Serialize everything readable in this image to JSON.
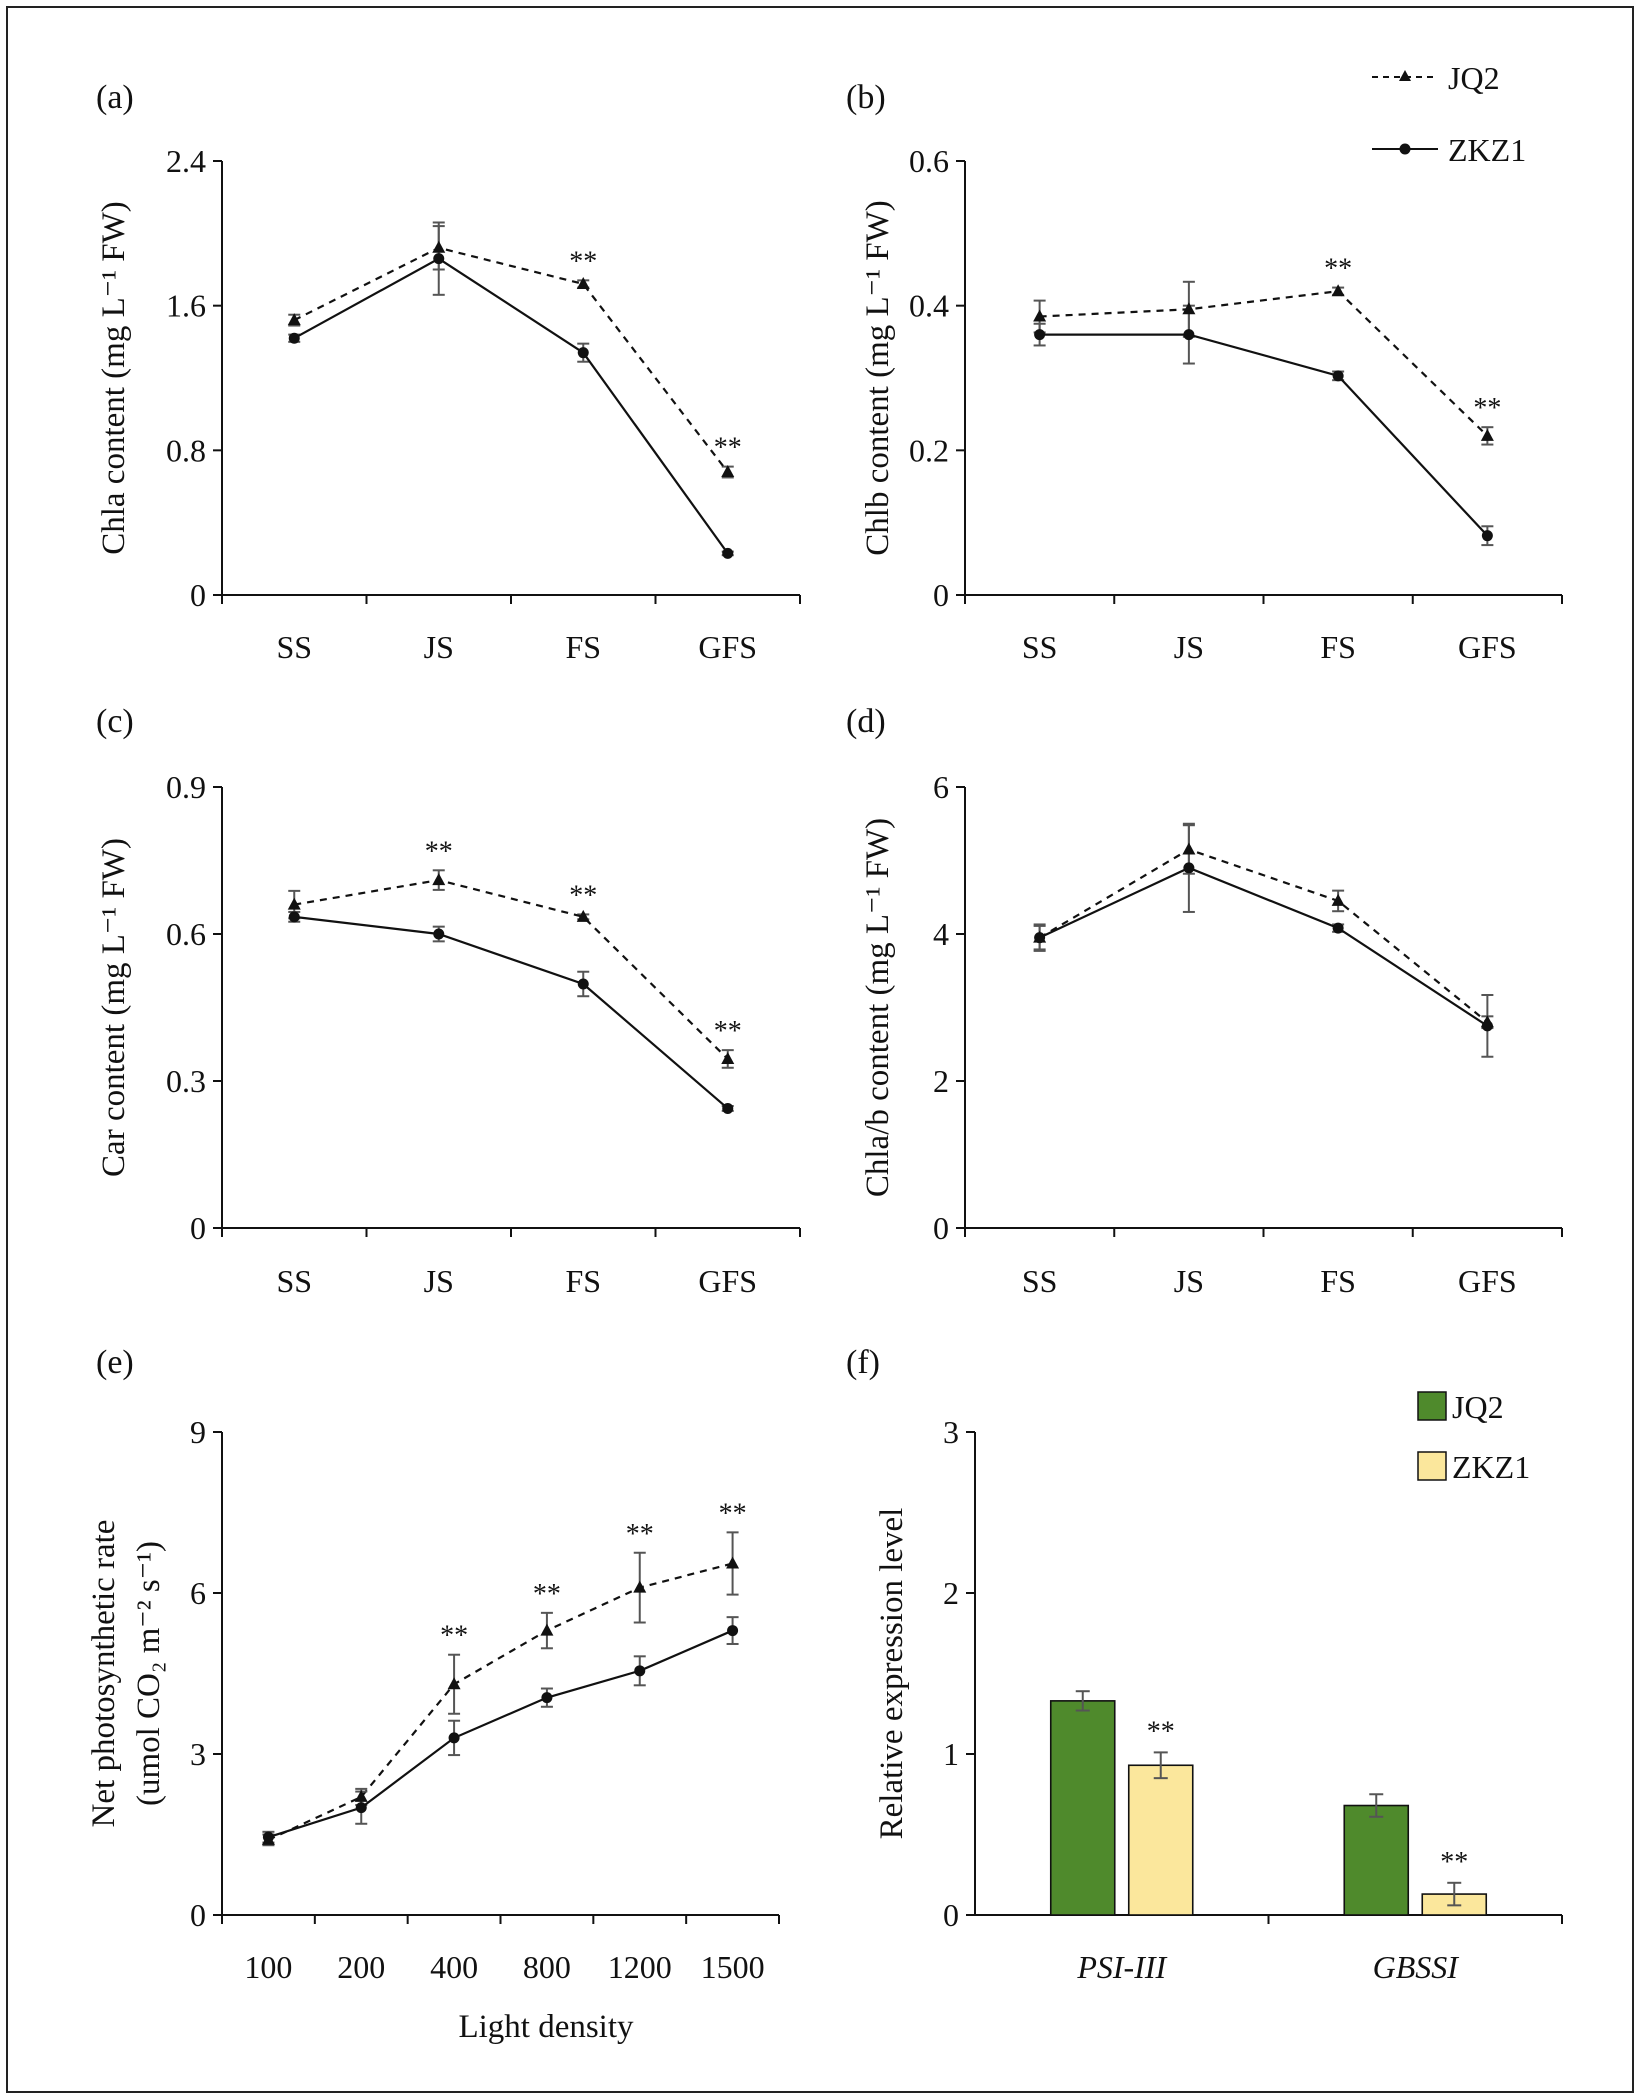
{
  "legend_lines": {
    "series": [
      "JQ2",
      "ZKZ1"
    ]
  },
  "legend_bars": {
    "series": [
      "JQ2",
      "ZKZ1"
    ],
    "colors": [
      "#4f8a2c",
      "#fbe79c"
    ]
  },
  "chart_data": [
    {
      "id": "a",
      "type": "line",
      "panel_label": "(a)",
      "ylabel": "Chla content (mg L⁻¹ FW)",
      "xlabel": "",
      "categories": [
        "SS",
        "JS",
        "FS",
        "GFS"
      ],
      "ylim": [
        0,
        2.4
      ],
      "yticks": [
        0,
        0.8,
        1.6,
        2.4
      ],
      "ytick_labels": [
        "0",
        "0.8",
        "1.6",
        "2.4"
      ],
      "series": [
        {
          "name": "JQ2",
          "values": [
            1.52,
            1.92,
            1.72,
            0.68
          ],
          "errors": [
            0.03,
            0.12,
            0.02,
            0.03
          ]
        },
        {
          "name": "ZKZ1",
          "values": [
            1.42,
            1.86,
            1.34,
            0.23
          ],
          "errors": [
            0.02,
            0.2,
            0.05,
            0.01
          ]
        }
      ],
      "annotations": [
        "",
        "",
        "**",
        "**"
      ]
    },
    {
      "id": "b",
      "type": "line",
      "panel_label": "(b)",
      "ylabel": "Chlb content (mg L⁻¹ FW)",
      "xlabel": "",
      "categories": [
        "SS",
        "JS",
        "FS",
        "GFS"
      ],
      "ylim": [
        0,
        0.6
      ],
      "yticks": [
        0,
        0.2,
        0.4,
        0.6
      ],
      "ytick_labels": [
        "0",
        "0.2",
        "0.4",
        "0.6"
      ],
      "series": [
        {
          "name": "JQ2",
          "values": [
            0.385,
            0.395,
            0.42,
            0.22
          ],
          "errors": [
            0.022,
            0.038,
            0.005,
            0.012
          ]
        },
        {
          "name": "ZKZ1",
          "values": [
            0.36,
            0.36,
            0.303,
            0.082
          ],
          "errors": [
            0.015,
            0.04,
            0.006,
            0.013
          ]
        }
      ],
      "annotations": [
        "",
        "",
        "**",
        "**"
      ]
    },
    {
      "id": "c",
      "type": "line",
      "panel_label": "(c)",
      "ylabel": "Car content (mg L⁻¹ FW)",
      "xlabel": "",
      "categories": [
        "SS",
        "JS",
        "FS",
        "GFS"
      ],
      "ylim": [
        0,
        0.9
      ],
      "yticks": [
        0,
        0.3,
        0.6,
        0.9
      ],
      "ytick_labels": [
        "0",
        "0.3",
        "0.6",
        "0.9"
      ],
      "series": [
        {
          "name": "JQ2",
          "values": [
            0.66,
            0.71,
            0.635,
            0.345
          ],
          "errors": [
            0.028,
            0.02,
            0.005,
            0.018
          ]
        },
        {
          "name": "ZKZ1",
          "values": [
            0.635,
            0.6,
            0.498,
            0.244
          ],
          "errors": [
            0.01,
            0.015,
            0.025,
            0.005
          ]
        }
      ],
      "annotations": [
        "",
        "**",
        "**",
        "**"
      ]
    },
    {
      "id": "d",
      "type": "line",
      "panel_label": "(d)",
      "ylabel": "Chla/b content (mg L⁻¹ FW)",
      "xlabel": "",
      "categories": [
        "SS",
        "JS",
        "FS",
        "GFS"
      ],
      "ylim": [
        0,
        6
      ],
      "yticks": [
        0,
        2,
        4,
        6
      ],
      "ytick_labels": [
        "0",
        "2",
        "4",
        "6"
      ],
      "series": [
        {
          "name": "JQ2",
          "values": [
            3.95,
            5.15,
            4.45,
            2.8
          ],
          "errors": [
            0.16,
            0.33,
            0.14,
            0.08
          ]
        },
        {
          "name": "ZKZ1",
          "values": [
            3.95,
            4.9,
            4.08,
            2.75
          ],
          "errors": [
            0.18,
            0.6,
            0.05,
            0.42
          ]
        }
      ],
      "annotations": [
        "",
        "",
        "",
        ""
      ]
    },
    {
      "id": "e",
      "type": "line",
      "panel_label": "(e)",
      "ylabel": "Net photosynthetic rate",
      "ylabel2": "(umol CO₂ m⁻² s⁻¹)",
      "xlabel": "Light density",
      "categories": [
        "100",
        "200",
        "400",
        "800",
        "1200",
        "1500"
      ],
      "ylim": [
        0,
        9
      ],
      "yticks": [
        0,
        3,
        6,
        9
      ],
      "ytick_labels": [
        "0",
        "3",
        "6",
        "9"
      ],
      "series": [
        {
          "name": "JQ2",
          "values": [
            1.4,
            2.2,
            4.3,
            5.3,
            6.1,
            6.55
          ],
          "errors": [
            0.1,
            0.15,
            0.55,
            0.33,
            0.65,
            0.58
          ]
        },
        {
          "name": "ZKZ1",
          "values": [
            1.45,
            2.0,
            3.3,
            4.05,
            4.55,
            5.3
          ],
          "errors": [
            0.1,
            0.3,
            0.32,
            0.17,
            0.27,
            0.25
          ]
        }
      ],
      "annotations": [
        "",
        "",
        "**",
        "**",
        "**",
        "**"
      ]
    },
    {
      "id": "f",
      "type": "bar",
      "panel_label": "(f)",
      "ylabel": "Relative expression level",
      "xlabel": "",
      "categories": [
        "PSI-III",
        "GBSSI"
      ],
      "ylim": [
        0,
        3
      ],
      "yticks": [
        0,
        1,
        2,
        3
      ],
      "ytick_labels": [
        "0",
        "1",
        "2",
        "3"
      ],
      "series": [
        {
          "name": "JQ2",
          "values": [
            1.33,
            0.68
          ],
          "errors": [
            0.06,
            0.07
          ]
        },
        {
          "name": "ZKZ1",
          "values": [
            0.93,
            0.13
          ],
          "errors": [
            0.08,
            0.07
          ]
        }
      ],
      "annotations": [
        "**",
        "**"
      ]
    }
  ]
}
